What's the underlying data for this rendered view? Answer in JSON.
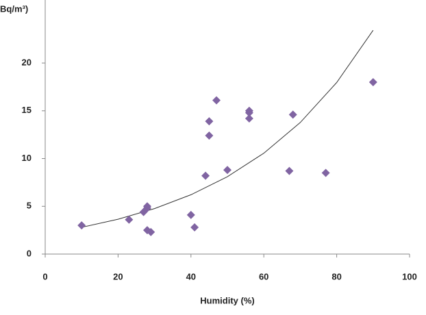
{
  "chart_data": {
    "type": "scatter",
    "y_label": "Bq/m³)",
    "x_label": "Humidity (%)",
    "xlim": [
      0,
      100
    ],
    "xticks": [
      0,
      20,
      40,
      60,
      80,
      100
    ],
    "ylim": [
      0,
      26.6
    ],
    "yticks": [
      0,
      5,
      10,
      15,
      20
    ],
    "points": {
      "color": "#8064a2",
      "x": [
        10,
        23,
        27,
        28,
        28,
        28,
        29,
        40,
        41,
        44,
        45,
        45,
        47,
        50,
        56,
        56,
        56,
        67,
        68,
        77,
        90
      ],
      "values": [
        3.0,
        3.6,
        4.4,
        5.0,
        4.8,
        2.5,
        2.3,
        4.1,
        2.8,
        8.2,
        13.9,
        12.4,
        16.1,
        8.8,
        15.0,
        14.8,
        14.2,
        8.7,
        14.6,
        8.5,
        18.0
      ]
    },
    "trendline": {
      "color": "#333333",
      "x": [
        10,
        20,
        30,
        40,
        50,
        60,
        70,
        80,
        90
      ],
      "values": [
        2.8,
        3.65,
        4.76,
        6.21,
        8.1,
        10.56,
        13.77,
        17.96,
        23.43
      ]
    }
  }
}
